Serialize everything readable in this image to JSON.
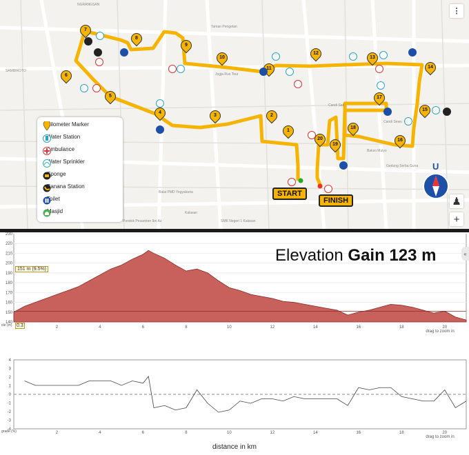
{
  "map": {
    "labels": [
      "NGRANGSAN",
      "SAMBIROTO",
      "Kalasan",
      "Taman Pengetan",
      "Jogja Run Tour",
      "SMK Negeri 1 Kalasan",
      "Candi Sari",
      "Bakso Mulyo",
      "Pondok Pesantren Ibn Az",
      "Balai PMD Yogyakarta",
      "Gedung Serba Guna",
      "Candi Sewu"
    ],
    "km_markers": [
      "1",
      "2",
      "3",
      "4",
      "5",
      "6",
      "7",
      "8",
      "9",
      "10",
      "11",
      "12",
      "13",
      "14",
      "15",
      "16",
      "17",
      "18",
      "19",
      "20"
    ],
    "start_label": "START",
    "finish_label": "FINISH",
    "compass_letter": "U",
    "route_color": "#f6b400",
    "legend": [
      {
        "icon": "kilometer-marker-icon",
        "label": "Kilometer Marker"
      },
      {
        "icon": "water-station-icon",
        "label": "Water Station"
      },
      {
        "icon": "ambulance-icon",
        "label": "Ambulance"
      },
      {
        "icon": "water-sprinkler-icon",
        "label": "Water Sprinkler"
      },
      {
        "icon": "sponge-icon",
        "label": "Sponge"
      },
      {
        "icon": "banana-station-icon",
        "label": "Banana Station"
      },
      {
        "icon": "toilet-icon",
        "label": "Toilet"
      },
      {
        "icon": "masjid-icon",
        "label": "Masjid"
      }
    ],
    "buttons": {
      "zoom_in": "+",
      "more": "⁝",
      "person": "♟"
    }
  },
  "elevation": {
    "title_prefix": "Elevation",
    "title_bold": "Gain 123 m",
    "hover_value": "151 m (9.5%)",
    "y_ticks": [
      "230",
      "220",
      "210",
      "200",
      "190",
      "180",
      "170",
      "160",
      "150",
      "140"
    ],
    "x_ticks": [
      "2",
      "4",
      "6",
      "8",
      "10",
      "12",
      "14",
      "16",
      "18",
      "20"
    ],
    "y_unit": "ele (m)",
    "x_start": "0.3",
    "zoom_hint": "drag to zoom in",
    "fill_color": "#c8615b",
    "profile_km": [
      0,
      0.5,
      1,
      1.5,
      2,
      2.5,
      3,
      3.5,
      4,
      4.5,
      5,
      5.5,
      6,
      6.25,
      6.5,
      7,
      7.5,
      8,
      8.5,
      9,
      9.5,
      10,
      10.5,
      11,
      11.5,
      12,
      12.5,
      13,
      13.5,
      14,
      14.5,
      15,
      15.5,
      16,
      16.5,
      17,
      17.5,
      18,
      18.5,
      19,
      19.5,
      20,
      20.5,
      21
    ],
    "profile_m": [
      150,
      156,
      160,
      164,
      168,
      172,
      176,
      182,
      188,
      194,
      198,
      204,
      209,
      213,
      210,
      205,
      198,
      192,
      194,
      190,
      182,
      175,
      172,
      168,
      166,
      164,
      161,
      160,
      158,
      156,
      154,
      152,
      147,
      150,
      152,
      155,
      158,
      157,
      155,
      152,
      149,
      151,
      145,
      142
    ]
  },
  "grade": {
    "y_ticks": [
      "4",
      "3",
      "2",
      "1",
      "0",
      "-1",
      "-2",
      "-3",
      "-4"
    ],
    "y_unit": "grade (%)",
    "x_ticks": [
      "2",
      "4",
      "6",
      "8",
      "10",
      "12",
      "14",
      "16",
      "18",
      "20"
    ],
    "zoom_hint": "drag to zoom in",
    "x_label": "distance in km"
  }
}
